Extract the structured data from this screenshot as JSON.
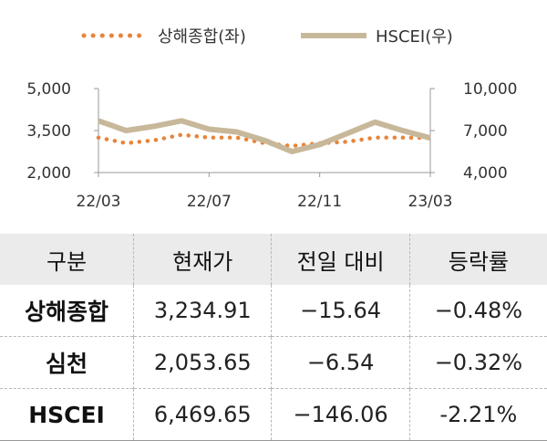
{
  "legend": {
    "series1_label": "상해종합(좌)",
    "series2_label": "HSCEI(우)"
  },
  "colors": {
    "series1": "#E8843A",
    "series2": "#C8B89A",
    "axis": "#999999"
  },
  "chart_data": {
    "type": "line",
    "title": "",
    "x_ticks": [
      "22/03",
      "22/07",
      "22/11",
      "23/03"
    ],
    "left_axis": {
      "ticks": [
        "5,000",
        "3,500",
        "2,000"
      ],
      "ylim": [
        2000,
        5000
      ]
    },
    "right_axis": {
      "ticks": [
        "10,000",
        "7,000",
        "4,000"
      ],
      "ylim": [
        4000,
        10000
      ]
    },
    "series": [
      {
        "name": "상해종합(좌)",
        "axis": "left",
        "style": "dotted",
        "x": [
          "22/03",
          "22/04",
          "22/05",
          "22/06",
          "22/07",
          "22/08",
          "22/09",
          "22/10",
          "22/11",
          "22/12",
          "23/01",
          "23/02",
          "23/03"
        ],
        "values": [
          3250,
          3050,
          3150,
          3350,
          3250,
          3250,
          3050,
          2950,
          3050,
          3100,
          3250,
          3250,
          3235
        ]
      },
      {
        "name": "HSCEI(우)",
        "axis": "right",
        "style": "solid",
        "x": [
          "22/03",
          "22/04",
          "22/05",
          "22/06",
          "22/07",
          "22/08",
          "22/09",
          "22/10",
          "22/11",
          "22/12",
          "23/01",
          "23/02",
          "23/03"
        ],
        "values": [
          7700,
          7000,
          7300,
          7700,
          7100,
          6900,
          6300,
          5500,
          6000,
          6800,
          7600,
          7000,
          6470
        ]
      }
    ]
  },
  "table": {
    "headers": [
      "구분",
      "현재가",
      "전일 대비",
      "등락률"
    ],
    "rows": [
      [
        "상해종합",
        "3,234.91",
        "−15.64",
        "−0.48%"
      ],
      [
        "심천",
        "2,053.65",
        "−6.54",
        "−0.32%"
      ],
      [
        "HSCEI",
        "6,469.65",
        "−146.06",
        "-2.21%"
      ]
    ]
  }
}
